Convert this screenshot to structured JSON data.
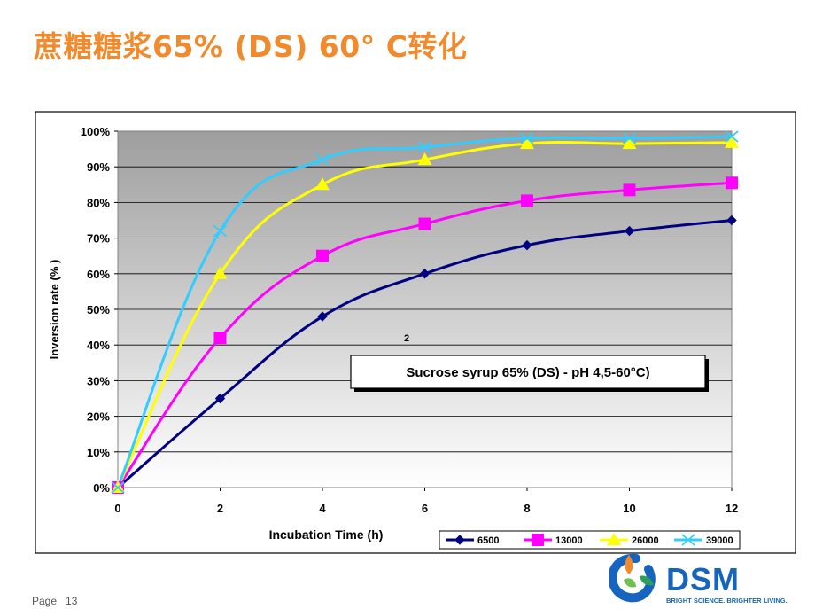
{
  "slide": {
    "title": "蔗糖糖浆65% (DS) 60° C转化",
    "page_label": "Page",
    "page_number": "13"
  },
  "logo": {
    "name": "DSM",
    "tagline": "BRIGHT SCIENCE. BRIGHTER LIVING.",
    "colors": [
      "#f08a2c",
      "#1565c0",
      "#2e9e5b",
      "#6cc24a"
    ]
  },
  "chart_data": {
    "type": "line",
    "xlabel": "Incubation Time (h)",
    "ylabel": "Inversion rate (% )",
    "x_ticks": [
      "0",
      "2",
      "4",
      "6",
      "8",
      "10",
      "12"
    ],
    "y_ticks": [
      "0%",
      "10%",
      "20%",
      "30%",
      "40%",
      "50%",
      "60%",
      "70%",
      "80%",
      "90%",
      "100%"
    ],
    "xlim": [
      0,
      12
    ],
    "ylim": [
      0,
      100
    ],
    "grid": true,
    "legend_position": "bottom-right",
    "annotation_box": "Sucrose syrup 65% (DS) - pH 4,5-60°C)",
    "stray_label": "2",
    "x": [
      0,
      2,
      4,
      6,
      8,
      10,
      12
    ],
    "series": [
      {
        "name": "6500",
        "color": "#000080",
        "marker": "diamond",
        "values": [
          0,
          25,
          48,
          60,
          68,
          72,
          75
        ]
      },
      {
        "name": "13000",
        "color": "#ff00ff",
        "marker": "square",
        "values": [
          0,
          42,
          65,
          74,
          80.5,
          83.5,
          85.5
        ]
      },
      {
        "name": "26000",
        "color": "#ffff00",
        "marker": "triangle",
        "values": [
          0,
          60,
          85,
          92,
          96.5,
          96.5,
          96.8
        ]
      },
      {
        "name": "39000",
        "color": "#33ccff",
        "marker": "x",
        "values": [
          0,
          72,
          92,
          95.5,
          98,
          98,
          98.5
        ]
      }
    ]
  }
}
